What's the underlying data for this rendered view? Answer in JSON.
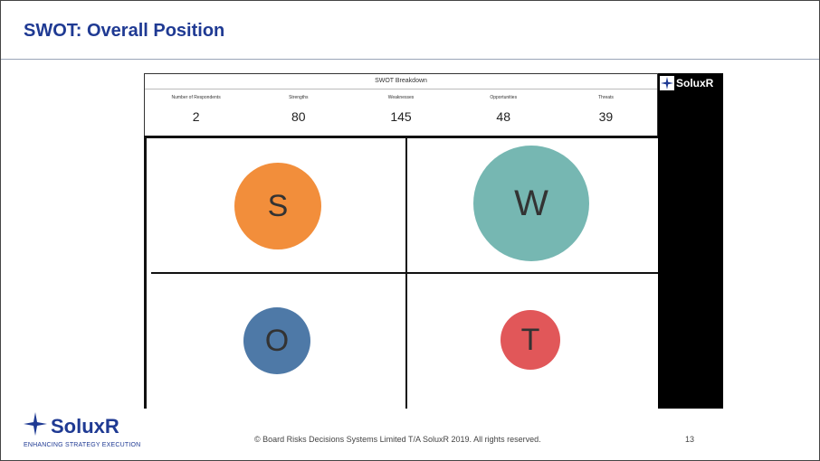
{
  "slide": {
    "title": "SWOT: Overall Position",
    "footer": "© Board Risks Decisions Systems Limited T/A SoluxR 2019. All rights reserved.",
    "page_number": "13"
  },
  "dashboard": {
    "header": "SWOT Breakdown",
    "stats": [
      {
        "label": "Number of Respondents",
        "value": "2"
      },
      {
        "label": "Strengths",
        "value": "80"
      },
      {
        "label": "Weaknesses",
        "value": "145"
      },
      {
        "label": "Opportunities",
        "value": "48"
      },
      {
        "label": "Threats",
        "value": "39"
      }
    ],
    "quadrants": [
      {
        "letter": "S",
        "color": "#f28e3b"
      },
      {
        "letter": "W",
        "color": "#76b7b2"
      },
      {
        "letter": "O",
        "color": "#4e79a7"
      },
      {
        "letter": "T",
        "color": "#e15759"
      }
    ],
    "brand": "SoluxR"
  },
  "logo": {
    "name": "SoluxR",
    "tagline": "ENHANCING STRATEGY EXECUTION",
    "icon": "compass-star-icon",
    "color": "#1f3a93"
  }
}
